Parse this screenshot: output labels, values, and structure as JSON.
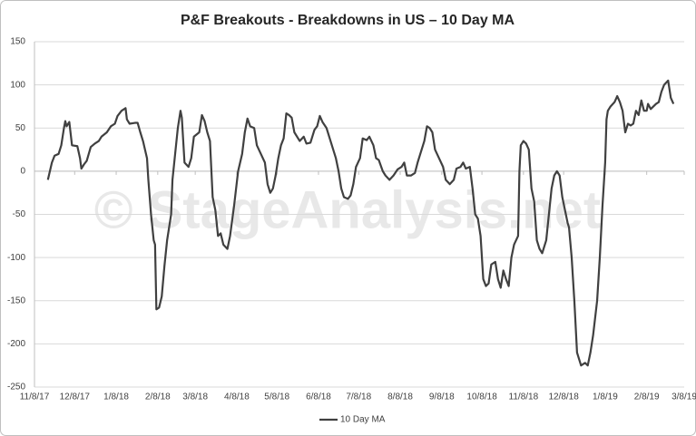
{
  "chart_data": {
    "type": "line",
    "title": "P&F Breakouts - Breakdowns in US – 10 Day MA",
    "watermark": "© StageAnalysis.net",
    "grid": true,
    "legend": "bottom",
    "ylim": [
      -250,
      150
    ],
    "yticks": [
      150,
      100,
      50,
      0,
      -50,
      -100,
      -150,
      -200,
      -250
    ],
    "xlim": [
      "2017-11-08",
      "2019-03-08"
    ],
    "xticks": [
      {
        "value": "2017-11-08",
        "label": "11/8/17"
      },
      {
        "value": "2017-12-08",
        "label": "12/8/17"
      },
      {
        "value": "2018-01-08",
        "label": "1/8/18"
      },
      {
        "value": "2018-02-08",
        "label": "2/8/18"
      },
      {
        "value": "2018-03-08",
        "label": "3/8/18"
      },
      {
        "value": "2018-04-08",
        "label": "4/8/18"
      },
      {
        "value": "2018-05-08",
        "label": "5/8/18"
      },
      {
        "value": "2018-06-08",
        "label": "6/8/18"
      },
      {
        "value": "2018-07-08",
        "label": "7/8/18"
      },
      {
        "value": "2018-08-08",
        "label": "8/8/18"
      },
      {
        "value": "2018-09-08",
        "label": "9/8/18"
      },
      {
        "value": "2018-10-08",
        "label": "10/8/18"
      },
      {
        "value": "2018-11-08",
        "label": "11/8/18"
      },
      {
        "value": "2018-12-08",
        "label": "12/8/18"
      },
      {
        "value": "2019-01-08",
        "label": "1/8/19"
      },
      {
        "value": "2019-02-08",
        "label": "2/8/19"
      },
      {
        "value": "2019-03-08",
        "label": "3/8/19"
      }
    ],
    "x": [
      "2017-11-18",
      "2017-11-21",
      "2017-11-23",
      "2017-11-26",
      "2017-11-28",
      "2017-11-30",
      "2017-12-01",
      "2017-12-02",
      "2017-12-04",
      "2017-12-06",
      "2017-12-10",
      "2017-12-12",
      "2017-12-13",
      "2017-12-15",
      "2017-12-17",
      "2017-12-20",
      "2017-12-23",
      "2017-12-26",
      "2017-12-28",
      "2018-01-01",
      "2018-01-04",
      "2018-01-07",
      "2018-01-09",
      "2018-01-12",
      "2018-01-15",
      "2018-01-16",
      "2018-01-18",
      "2018-01-22",
      "2018-01-24",
      "2018-01-26",
      "2018-01-28",
      "2018-01-31",
      "2018-02-01",
      "2018-02-03",
      "2018-02-05",
      "2018-02-06",
      "2018-02-07",
      "2018-02-09",
      "2018-02-11",
      "2018-02-13",
      "2018-02-15",
      "2018-02-18",
      "2018-02-19",
      "2018-02-21",
      "2018-02-23",
      "2018-02-25",
      "2018-02-26",
      "2018-02-28",
      "2018-03-03",
      "2018-03-05",
      "2018-03-07",
      "2018-03-11",
      "2018-03-13",
      "2018-03-15",
      "2018-03-17",
      "2018-03-19",
      "2018-03-21",
      "2018-03-23",
      "2018-03-25",
      "2018-03-27",
      "2018-03-29",
      "2018-04-01",
      "2018-04-03",
      "2018-04-06",
      "2018-04-09",
      "2018-04-12",
      "2018-04-14",
      "2018-04-16",
      "2018-04-18",
      "2018-04-21",
      "2018-04-23",
      "2018-04-26",
      "2018-04-29",
      "2018-05-01",
      "2018-05-03",
      "2018-05-05",
      "2018-05-07",
      "2018-05-09",
      "2018-05-11",
      "2018-05-13",
      "2018-05-15",
      "2018-05-17",
      "2018-05-19",
      "2018-05-21",
      "2018-05-25",
      "2018-05-28",
      "2018-05-30",
      "2018-06-02",
      "2018-06-05",
      "2018-06-07",
      "2018-06-09",
      "2018-06-11",
      "2018-06-14",
      "2018-06-17",
      "2018-06-21",
      "2018-06-23",
      "2018-06-25",
      "2018-06-27",
      "2018-06-30",
      "2018-07-02",
      "2018-07-04",
      "2018-07-06",
      "2018-07-09",
      "2018-07-11",
      "2018-07-14",
      "2018-07-16",
      "2018-07-19",
      "2018-07-21",
      "2018-07-23",
      "2018-07-26",
      "2018-07-28",
      "2018-07-31",
      "2018-08-03",
      "2018-08-06",
      "2018-08-09",
      "2018-08-11",
      "2018-08-13",
      "2018-08-16",
      "2018-08-19",
      "2018-08-21",
      "2018-08-23",
      "2018-08-26",
      "2018-08-28",
      "2018-08-30",
      "2018-09-01",
      "2018-09-03",
      "2018-09-06",
      "2018-09-09",
      "2018-09-11",
      "2018-09-14",
      "2018-09-17",
      "2018-09-19",
      "2018-09-22",
      "2018-09-24",
      "2018-09-26",
      "2018-09-29",
      "2018-10-01",
      "2018-10-03",
      "2018-10-05",
      "2018-10-07",
      "2018-10-09",
      "2018-10-11",
      "2018-10-13",
      "2018-10-15",
      "2018-10-18",
      "2018-10-20",
      "2018-10-22",
      "2018-10-24",
      "2018-10-26",
      "2018-10-28",
      "2018-10-30",
      "2018-11-01",
      "2018-11-04",
      "2018-11-05",
      "2018-11-06",
      "2018-11-08",
      "2018-11-10",
      "2018-11-12",
      "2018-11-14",
      "2018-11-16",
      "2018-11-18",
      "2018-11-20",
      "2018-11-22",
      "2018-11-25",
      "2018-11-27",
      "2018-11-29",
      "2018-12-01",
      "2018-12-03",
      "2018-12-05",
      "2018-12-07",
      "2018-12-09",
      "2018-12-11",
      "2018-12-12",
      "2018-12-14",
      "2018-12-16",
      "2018-12-18",
      "2018-12-20",
      "2018-12-21",
      "2018-12-24",
      "2018-12-26",
      "2018-12-28",
      "2018-12-30",
      "2019-01-02",
      "2019-01-04",
      "2019-01-06",
      "2019-01-08",
      "2019-01-09",
      "2019-01-10",
      "2019-01-12",
      "2019-01-15",
      "2019-01-17",
      "2019-01-19",
      "2019-01-21",
      "2019-01-23",
      "2019-01-25",
      "2019-01-27",
      "2019-01-29",
      "2019-01-31",
      "2019-02-02",
      "2019-02-04",
      "2019-02-06",
      "2019-02-08",
      "2019-02-09",
      "2019-02-11",
      "2019-02-13",
      "2019-02-15",
      "2019-02-17",
      "2019-02-19",
      "2019-02-21",
      "2019-02-24",
      "2019-02-26",
      "2019-02-28"
    ],
    "series": [
      {
        "name": "10 Day MA",
        "color": "#404040",
        "values": [
          -10,
          10,
          18,
          20,
          30,
          50,
          58,
          52,
          57,
          30,
          29,
          15,
          3,
          8,
          12,
          28,
          32,
          35,
          40,
          45,
          52,
          55,
          64,
          70,
          73,
          60,
          55,
          56,
          56,
          45,
          35,
          15,
          -10,
          -50,
          -80,
          -85,
          -160,
          -158,
          -145,
          -110,
          -80,
          -50,
          -10,
          20,
          50,
          70,
          62,
          10,
          5,
          15,
          40,
          45,
          65,
          58,
          45,
          35,
          -30,
          -45,
          -75,
          -72,
          -85,
          -90,
          -75,
          -40,
          0,
          20,
          45,
          61,
          52,
          50,
          30,
          20,
          10,
          -15,
          -25,
          -20,
          -5,
          15,
          30,
          38,
          67,
          65,
          62,
          45,
          35,
          40,
          32,
          33,
          48,
          52,
          64,
          57,
          50,
          35,
          15,
          0,
          -20,
          -30,
          -32,
          -28,
          -15,
          5,
          15,
          38,
          36,
          40,
          30,
          15,
          13,
          0,
          -5,
          -10,
          -5,
          2,
          5,
          10,
          -5,
          -5,
          -2,
          10,
          20,
          35,
          52,
          50,
          45,
          25,
          15,
          5,
          -10,
          -15,
          -10,
          3,
          5,
          10,
          3,
          5,
          -20,
          -50,
          -55,
          -75,
          -125,
          -133,
          -130,
          -108,
          -105,
          -125,
          -135,
          -115,
          -125,
          -133,
          -100,
          -85,
          -75,
          0,
          30,
          35,
          32,
          25,
          -20,
          -35,
          -80,
          -90,
          -95,
          -80,
          -50,
          -20,
          -5,
          0,
          -5,
          -30,
          -45,
          -60,
          -65,
          -100,
          -150,
          -210,
          -220,
          -225,
          -222,
          -225,
          -210,
          -190,
          -150,
          -100,
          -40,
          10,
          60,
          70,
          75,
          80,
          87,
          80,
          70,
          45,
          55,
          53,
          55,
          70,
          65,
          82,
          70,
          70,
          78,
          72,
          75,
          78,
          80,
          92,
          100,
          105,
          85,
          78
        ]
      }
    ]
  }
}
